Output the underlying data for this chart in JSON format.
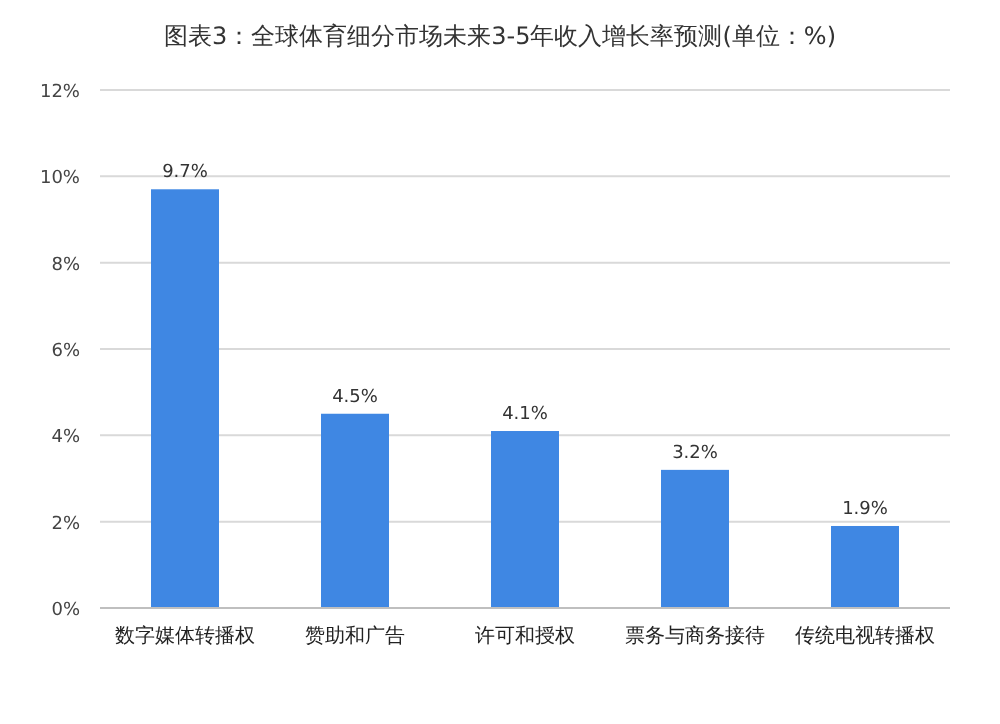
{
  "chart_data": {
    "type": "bar",
    "title": "图表3：全球体育细分市场未来3-5年收入增长率预测(单位：%)",
    "categories": [
      "数字媒体转播权",
      "赞助和广告",
      "许可和授权",
      "票务与商务接待",
      "传统电视转播权"
    ],
    "values": [
      9.7,
      4.5,
      4.1,
      3.2,
      1.9
    ],
    "value_labels": [
      "9.7%",
      "4.5%",
      "4.1%",
      "3.2%",
      "1.9%"
    ],
    "color": "#3f87e3",
    "ylim": [
      0,
      12
    ],
    "yticks": [
      {
        "value": 0,
        "label": "0%"
      },
      {
        "value": 2,
        "label": "2%"
      },
      {
        "value": 4,
        "label": "4%"
      },
      {
        "value": 6,
        "label": "6%"
      },
      {
        "value": 8,
        "label": "8%"
      },
      {
        "value": 10,
        "label": "10%"
      },
      {
        "value": 12,
        "label": "12%"
      }
    ],
    "grid": "y"
  }
}
